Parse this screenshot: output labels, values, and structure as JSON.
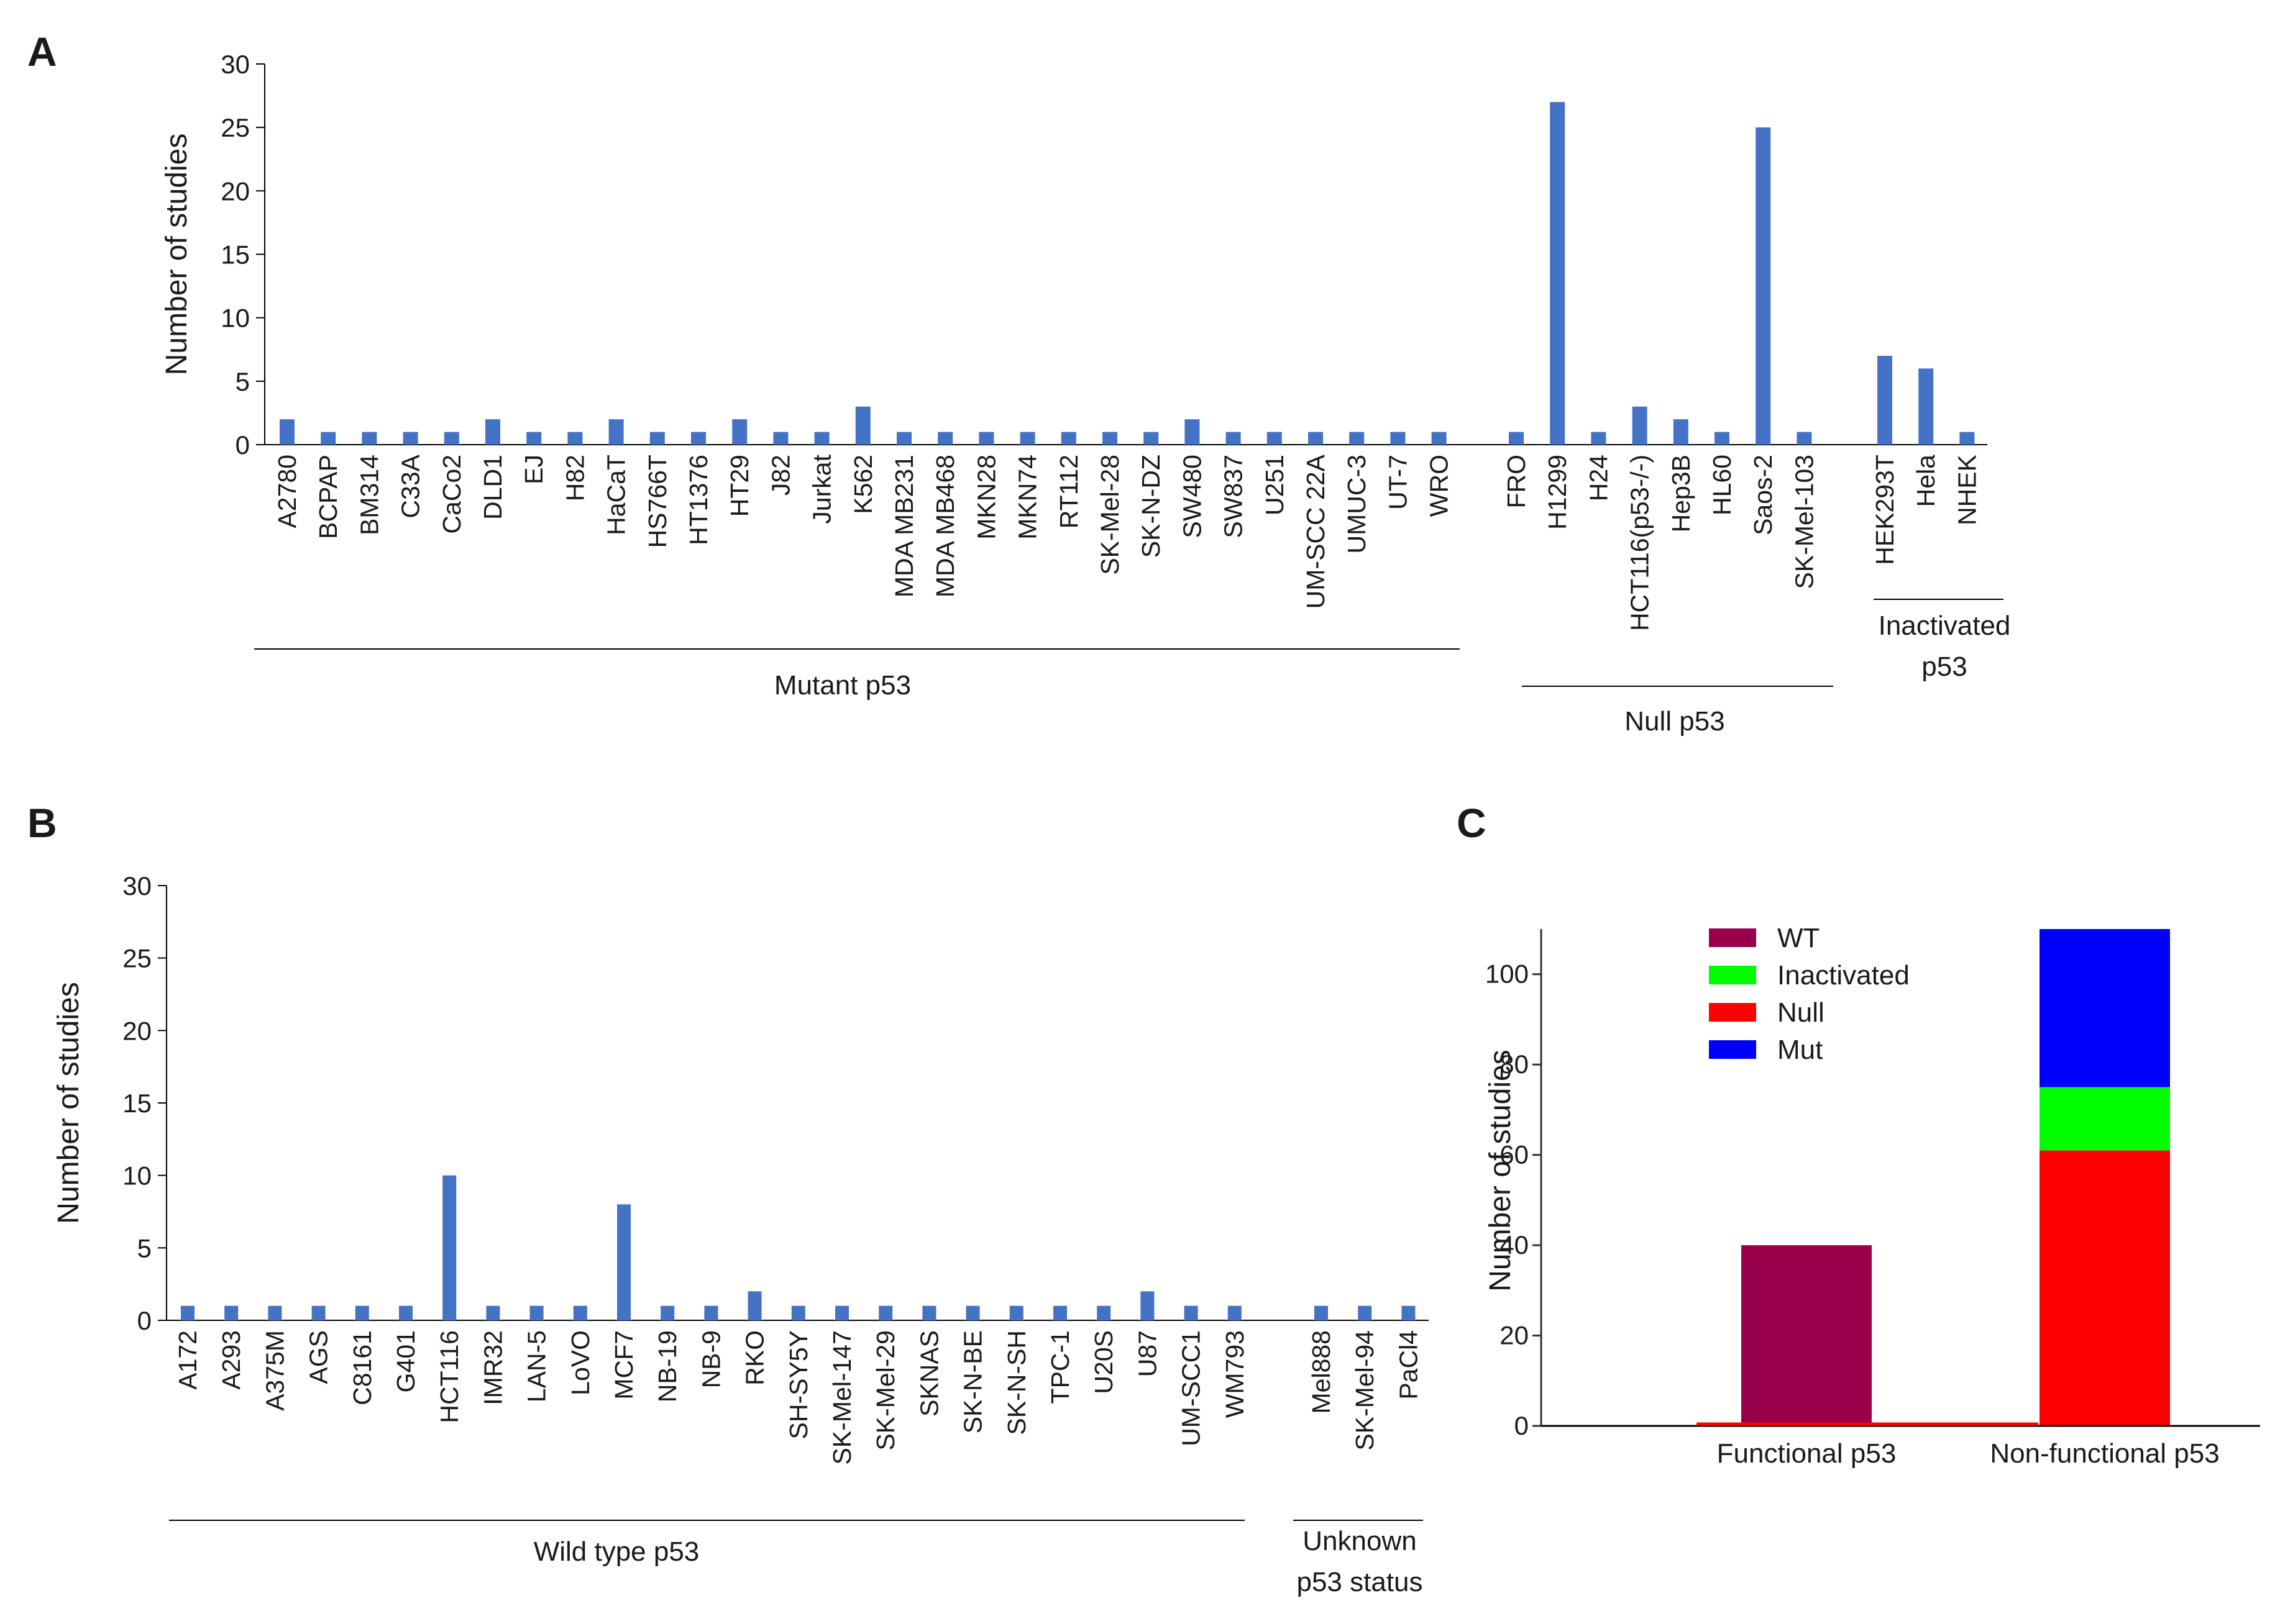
{
  "panels": {
    "a": {
      "letter": "A"
    },
    "b": {
      "letter": "B"
    },
    "c": {
      "letter": "C"
    }
  },
  "colors": {
    "bar": "#4472C4",
    "wt": "#99004C",
    "inactivated": "#00FF00",
    "null": "#FF0000",
    "mut": "#0000FF",
    "axis": "#000000"
  },
  "chart_data": [
    {
      "id": "A",
      "type": "bar",
      "ylabel": "Number of studies",
      "ylim": [
        0,
        30
      ],
      "yticks": [
        0,
        5,
        10,
        15,
        20,
        25,
        30
      ],
      "groups": [
        {
          "name": "Mutant p53",
          "categories": [
            "A2780",
            "BCPAP",
            "BM314",
            "C33A",
            "CaCo2",
            "DLD1",
            "EJ",
            "H82",
            "HaCaT",
            "HS766T",
            "HT1376",
            "HT29",
            "J82",
            "Jurkat",
            "K562",
            "MDA MB231",
            "MDA MB468",
            "MKN28",
            "MKN74",
            "RT112",
            "SK-Mel-28",
            "SK-N-DZ",
            "SW480",
            "SW837",
            "U251",
            "UM-SCC 22A",
            "UMUC-3",
            "UT-7",
            "WRO"
          ],
          "values": [
            2,
            1,
            1,
            1,
            1,
            2,
            1,
            1,
            2,
            1,
            1,
            2,
            1,
            1,
            3,
            1,
            1,
            1,
            1,
            1,
            1,
            1,
            2,
            1,
            1,
            1,
            1,
            1,
            1
          ]
        },
        {
          "name": "Null p53",
          "categories": [
            "FRO",
            "H1299",
            "H24",
            "HCT116(p53-/-)",
            "Hep3B",
            "HL60",
            "Saos-2",
            "SK-Mel-103"
          ],
          "values": [
            1,
            27,
            1,
            3,
            2,
            1,
            25,
            1
          ]
        },
        {
          "name_lines": [
            "Inactivated",
            "p53"
          ],
          "categories": [
            "HEK293T",
            "Hela",
            "NHEK"
          ],
          "values": [
            7,
            6,
            1
          ]
        }
      ]
    },
    {
      "id": "B",
      "type": "bar",
      "ylabel": "Number of  studies",
      "ylim": [
        0,
        30
      ],
      "yticks": [
        0,
        5,
        10,
        15,
        20,
        25,
        30
      ],
      "groups": [
        {
          "name": "Wild type p53",
          "categories": [
            "A172",
            "A293",
            "A375M",
            "AGS",
            "C8161",
            "G401",
            "HCT116",
            "IMR32",
            "LAN-5",
            "LoVO",
            "MCF7",
            "NB-19",
            "NB-9",
            "RKO",
            "SH-SY5Y",
            "SK-Mel-147",
            "SK-Mel-29",
            "SKNAS",
            "SK-N-BE",
            "SK-N-SH",
            "TPC-1",
            "U20S",
            "U87",
            "UM-SCC1",
            "WM793"
          ],
          "values": [
            1,
            1,
            1,
            1,
            1,
            1,
            10,
            1,
            1,
            1,
            8,
            1,
            1,
            2,
            1,
            1,
            1,
            1,
            1,
            1,
            1,
            1,
            2,
            1,
            1
          ]
        },
        {
          "name_lines": [
            "Unknown",
            "p53 status"
          ],
          "categories": [
            "Mel888",
            "SK-Mel-94",
            "PaCl4"
          ],
          "values": [
            1,
            1,
            1
          ]
        }
      ]
    },
    {
      "id": "C",
      "type": "bar",
      "stacked": true,
      "ylabel": "Number of studies",
      "ylim": [
        0,
        110
      ],
      "yticks": [
        0,
        20,
        40,
        60,
        80,
        100
      ],
      "categories": [
        "Functional p53",
        "Non-functional p53"
      ],
      "series": [
        {
          "name": "WT",
          "values": [
            40,
            0
          ]
        },
        {
          "name": "Null",
          "values": [
            0,
            61
          ]
        },
        {
          "name": "Inactivated",
          "values": [
            0,
            14
          ]
        },
        {
          "name": "Mut",
          "values": [
            0,
            35
          ]
        }
      ],
      "legend": [
        "WT",
        "Inactivated",
        "Null",
        "Mut"
      ],
      "legend_position": "top-left"
    }
  ]
}
